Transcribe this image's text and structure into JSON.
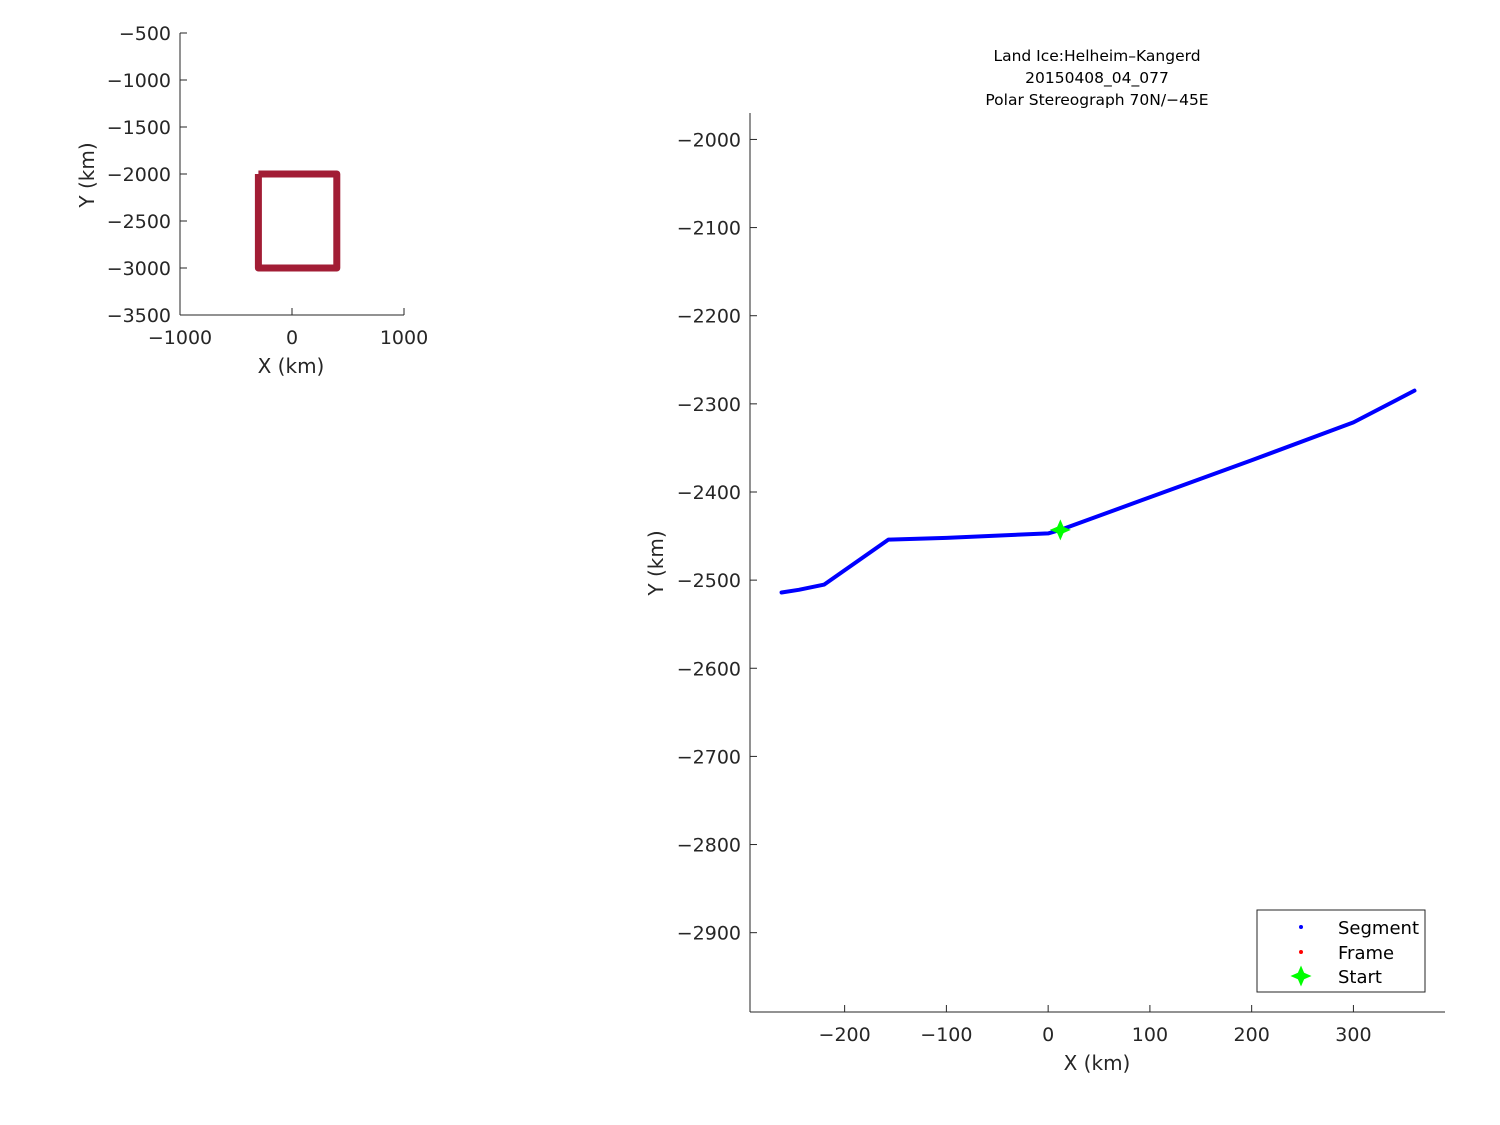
{
  "chart_data": [
    {
      "type": "line",
      "name": "overview",
      "xlabel": "X (km)",
      "ylabel": "Y (km)",
      "xlim": [
        -1000,
        1000
      ],
      "ylim": [
        -3500,
        -500
      ],
      "xticks": [
        -1000,
        0,
        1000
      ],
      "yticks": [
        -500,
        -1000,
        -1500,
        -2000,
        -2500,
        -3000,
        -3500
      ],
      "grid": false,
      "series": [
        {
          "color": "#a21d35",
          "x": [
            -300,
            400,
            400,
            -300,
            -300
          ],
          "y": [
            -2000,
            -2000,
            -3000,
            -3000,
            -2000
          ]
        }
      ]
    },
    {
      "type": "line",
      "name": "segment",
      "title": [
        "Land Ice:Helheim–Kangerd",
        "20150408_04_077",
        "Polar Stereograph 70N/−45E"
      ],
      "xlabel": "X (km)",
      "ylabel": "Y (km)",
      "xlim": [
        -293,
        390
      ],
      "ylim": [
        -2990,
        -1970
      ],
      "xticks": [
        -200,
        -100,
        0,
        100,
        200,
        300
      ],
      "yticks": [
        -2000,
        -2100,
        -2200,
        -2300,
        -2400,
        -2500,
        -2600,
        -2700,
        -2800,
        -2900
      ],
      "grid": false,
      "legend_position": "bottom-right",
      "legend": [
        {
          "label": "Segment",
          "marker": "dot",
          "color": "#0000ff"
        },
        {
          "label": "Frame",
          "marker": "dot",
          "color": "#ff0000"
        },
        {
          "label": "Start",
          "marker": "star",
          "color": "#00ff00"
        }
      ],
      "series": [
        {
          "name": "Segment",
          "color": "#0000ff",
          "x": [
            -262,
            -245,
            -220,
            -157,
            -100,
            0,
            12,
            100,
            200,
            300,
            360
          ],
          "y": [
            -2514,
            -2511,
            -2505,
            -2454,
            -2452,
            -2447,
            -2443,
            -2406,
            -2364,
            -2321,
            -2285
          ]
        },
        {
          "name": "Start",
          "color": "#00ff00",
          "x": [
            12
          ],
          "y": [
            -2443
          ]
        }
      ]
    }
  ]
}
